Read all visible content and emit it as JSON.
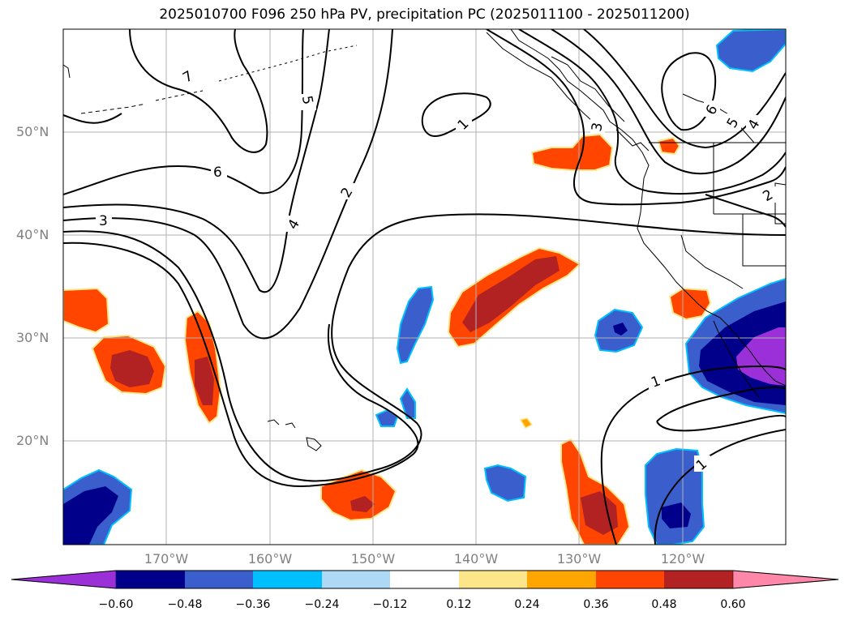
{
  "title": "2025010700 F096 250 hPa PV, precipitation PC (2025011100 - 2025011200)",
  "map": {
    "lat_labels": [
      {
        "text": "50°N",
        "lat": 50
      },
      {
        "text": "40°N",
        "lat": 40
      },
      {
        "text": "30°N",
        "lat": 30
      },
      {
        "text": "20°N",
        "lat": 20
      }
    ],
    "lon_labels": [
      {
        "text": "170°W",
        "lon": -170
      },
      {
        "text": "160°W",
        "lon": -160
      },
      {
        "text": "150°W",
        "lon": -150
      },
      {
        "text": "140°W",
        "lon": -140
      },
      {
        "text": "130°W",
        "lon": -130
      },
      {
        "text": "120°W",
        "lon": -120
      }
    ],
    "contour_labels": [
      "7",
      "5",
      "6",
      "3",
      "4",
      "2",
      "1",
      "6",
      "5",
      "4",
      "2",
      "1",
      "1",
      "3"
    ],
    "colors": {
      "coastline": "#000000",
      "contour": "#000000",
      "gridline": "#b0b0b0"
    }
  },
  "colorbar": {
    "ticks": [
      "−0.60",
      "−0.48",
      "−0.36",
      "−0.24",
      "−0.12",
      "0.12",
      "0.24",
      "0.36",
      "0.48",
      "0.60"
    ],
    "bins": [
      {
        "color": "#9b30d9"
      },
      {
        "color": "#00008b"
      },
      {
        "color": "#3a5fcd"
      },
      {
        "color": "#00bfff"
      },
      {
        "color": "#add8f6"
      },
      {
        "color": "#ffffff"
      },
      {
        "color": "#fde68a"
      },
      {
        "color": "#ffa500"
      },
      {
        "color": "#ff4500"
      },
      {
        "color": "#b22222"
      },
      {
        "color": "#ff88aa"
      }
    ]
  }
}
